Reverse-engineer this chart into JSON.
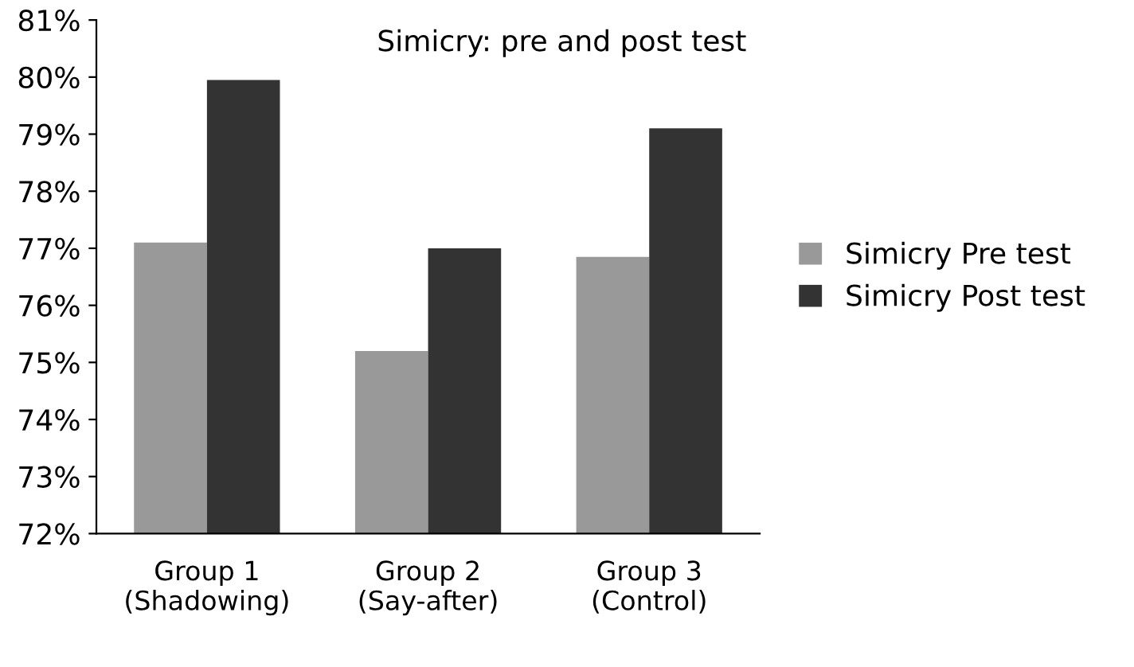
{
  "chart_data": {
    "type": "bar",
    "title": "Simicry: pre and post test",
    "categories": [
      "Group 1\n(Shadowing)",
      "Group 2\n(Say-after)",
      "Group 3\n(Control)"
    ],
    "series": [
      {
        "name": "Simicry Pre test",
        "color": "#999999",
        "values": [
          77.1,
          75.2,
          76.85
        ]
      },
      {
        "name": "Simicry Post test",
        "color": "#333333",
        "values": [
          79.95,
          77.0,
          79.1
        ]
      }
    ],
    "ylim": [
      72,
      81
    ],
    "yticks": [
      {
        "value": 72,
        "label": "72%"
      },
      {
        "value": 73,
        "label": "73%"
      },
      {
        "value": 74,
        "label": "74%"
      },
      {
        "value": 75,
        "label": "75%"
      },
      {
        "value": 76,
        "label": "76%"
      },
      {
        "value": 77,
        "label": "77%"
      },
      {
        "value": 78,
        "label": "78%"
      },
      {
        "value": 79,
        "label": "79%"
      },
      {
        "value": 80,
        "label": "80%"
      },
      {
        "value": 81,
        "label": "81%"
      }
    ],
    "grid": false,
    "legend": "right"
  }
}
